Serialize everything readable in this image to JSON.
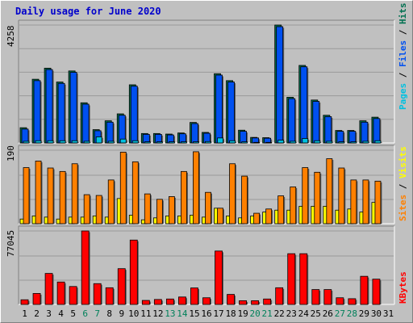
{
  "title": "Daily usage for June 2020",
  "colors": {
    "background": "#c0c0c0",
    "title": "#0000cc",
    "pages": "#00c0e0",
    "files": "#0050f0",
    "hits": "#007050",
    "visits": "#ffff00",
    "sites": "#ff8000",
    "kbytes": "#ff0000",
    "weekday_label": "#000000",
    "weekend_label": "#00805a"
  },
  "chart_data": [
    {
      "type": "bar",
      "panel": "hits-files-pages",
      "max_label": "4258",
      "ylim": [
        0,
        4258
      ],
      "series_labels": [
        "Pages",
        "Files",
        "Hits"
      ],
      "categories": [
        "1",
        "2",
        "3",
        "4",
        "5",
        "6",
        "7",
        "8",
        "9",
        "10",
        "11",
        "12",
        "13",
        "14",
        "15",
        "16",
        "17",
        "18",
        "19",
        "20",
        "21",
        "22",
        "23",
        "24",
        "25",
        "26",
        "27",
        "28",
        "29",
        "30",
        "31"
      ],
      "series": [
        {
          "name": "Hits",
          "values": [
            550,
            2300,
            2700,
            2200,
            2600,
            1450,
            480,
            800,
            1050,
            2100,
            340,
            340,
            320,
            360,
            740,
            380,
            2500,
            2250,
            460,
            200,
            190,
            4258,
            1650,
            2800,
            1550,
            1000,
            450,
            450,
            800,
            930,
            0
          ]
        },
        {
          "name": "Files",
          "values": [
            500,
            2250,
            2650,
            2150,
            2550,
            1400,
            440,
            750,
            1000,
            2050,
            310,
            310,
            290,
            330,
            700,
            350,
            2450,
            2200,
            420,
            180,
            170,
            4200,
            1600,
            2750,
            1500,
            950,
            420,
            420,
            750,
            880,
            0
          ]
        },
        {
          "name": "Pages",
          "values": [
            60,
            80,
            80,
            80,
            80,
            60,
            220,
            60,
            140,
            80,
            40,
            40,
            40,
            40,
            40,
            50,
            180,
            80,
            40,
            20,
            20,
            100,
            60,
            160,
            80,
            60,
            40,
            40,
            60,
            80,
            0
          ]
        }
      ]
    },
    {
      "type": "bar",
      "panel": "sites-visits",
      "max_label": "190",
      "ylim": [
        0,
        190
      ],
      "series_labels": [
        "Sites",
        "Visits"
      ],
      "categories": [
        "1",
        "2",
        "3",
        "4",
        "5",
        "6",
        "7",
        "8",
        "9",
        "10",
        "11",
        "12",
        "13",
        "14",
        "15",
        "16",
        "17",
        "18",
        "19",
        "20",
        "21",
        "22",
        "23",
        "24",
        "25",
        "26",
        "27",
        "28",
        "29",
        "30",
        "31"
      ],
      "series": [
        {
          "name": "Sites",
          "values": [
            145,
            162,
            144,
            135,
            155,
            75,
            73,
            113,
            185,
            160,
            77,
            63,
            70,
            135,
            186,
            81,
            40,
            155,
            123,
            27,
            38,
            72,
            95,
            145,
            133,
            168,
            144,
            113,
            113,
            110,
            0
          ]
        },
        {
          "name": "Visits",
          "values": [
            12,
            20,
            17,
            12,
            17,
            17,
            20,
            17,
            65,
            22,
            10,
            15,
            20,
            20,
            22,
            17,
            40,
            20,
            15,
            20,
            30,
            35,
            35,
            45,
            45,
            45,
            35,
            38,
            30,
            55,
            0
          ]
        }
      ]
    },
    {
      "type": "bar",
      "panel": "kbytes",
      "max_label": "77045",
      "ylim": [
        0,
        77045
      ],
      "series_labels": [
        "KBytes"
      ],
      "categories": [
        "1",
        "2",
        "3",
        "4",
        "5",
        "6",
        "7",
        "8",
        "9",
        "10",
        "11",
        "12",
        "13",
        "14",
        "15",
        "16",
        "17",
        "18",
        "19",
        "20",
        "21",
        "22",
        "23",
        "24",
        "25",
        "26",
        "27",
        "28",
        "29",
        "30",
        "31"
      ],
      "weekend_days": [
        6,
        7,
        13,
        14,
        20,
        21,
        27,
        28
      ],
      "series": [
        {
          "name": "KBytes",
          "values": [
            4900,
            11500,
            32500,
            23500,
            18800,
            77045,
            21800,
            17500,
            37500,
            67500,
            4200,
            5200,
            5700,
            7800,
            17300,
            7000,
            56000,
            10500,
            3900,
            3900,
            5700,
            17500,
            53200,
            53200,
            15600,
            15600,
            7000,
            6000,
            29500,
            26500,
            0
          ]
        }
      ]
    }
  ]
}
